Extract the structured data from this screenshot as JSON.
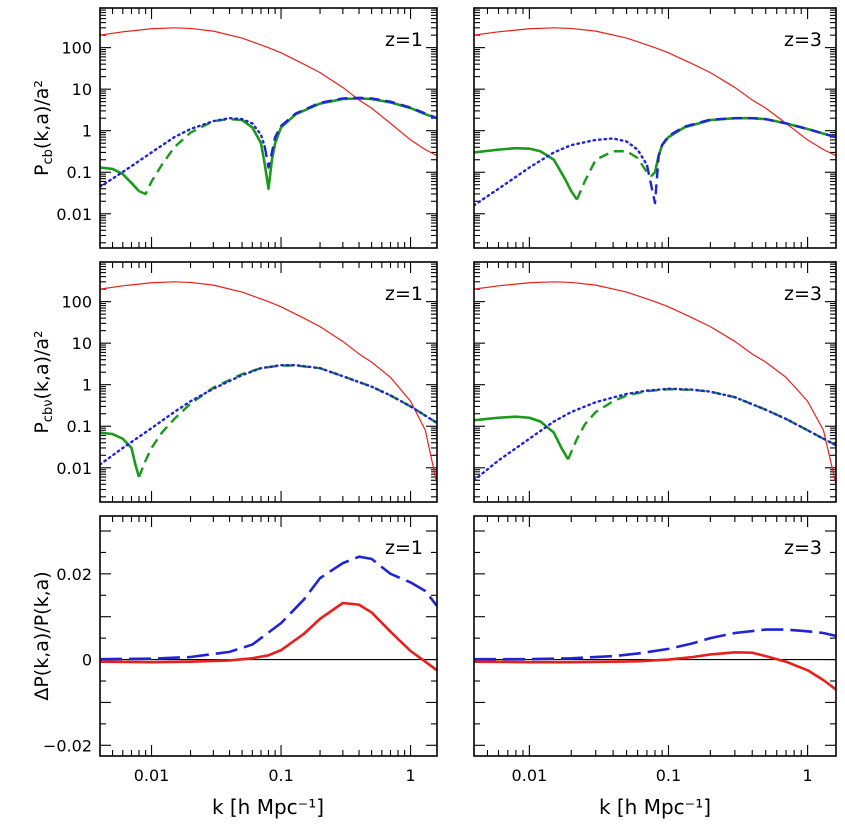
{
  "colors": {
    "red": "#e8201c",
    "green": "#1a9a1a",
    "blue": "#1f25d6",
    "axis": "#000000"
  },
  "figure": {
    "rows": [
      {
        "ylabel": "P",
        "ylabel_sub": "cb",
        "ylabel_rest": "(k,a)/a²"
      },
      {
        "ylabel": "P",
        "ylabel_sub": "cbν",
        "ylabel_rest": "(k,a)/a²"
      },
      {
        "ylabel": "ΔP(k,a)/P(k,a)",
        "ylabel_sub": "",
        "ylabel_rest": ""
      }
    ],
    "xlabel": "k  [h Mpc⁻¹]",
    "x_tick_labels": [
      "0.01",
      "0.1",
      "1"
    ],
    "log_y_tick_labels": [
      "0.01",
      "0.1",
      "1",
      "10",
      "100"
    ],
    "lin_y_tick_labels": [
      "−0.02",
      "0",
      "0.02"
    ],
    "panel_labels": [
      "z=1",
      "z=3",
      "z=1",
      "z=3",
      "z=1",
      "z=3"
    ]
  },
  "chart_data": [
    {
      "type": "line",
      "panel": "top-left",
      "label": "z=1",
      "xscale": "log",
      "yscale": "log",
      "xlim": [
        0.004,
        1.6
      ],
      "ylim": [
        0.0015,
        900
      ],
      "series": [
        {
          "color": "red",
          "style": "solid-thin",
          "x": [
            0.004,
            0.006,
            0.01,
            0.015,
            0.02,
            0.03,
            0.05,
            0.08,
            0.1,
            0.15,
            0.2,
            0.3,
            0.4,
            0.5,
            0.7,
            1.0,
            1.3,
            1.6
          ],
          "y": [
            200,
            240,
            285,
            300,
            290,
            250,
            170,
            100,
            75,
            40,
            25,
            11,
            5.5,
            3.5,
            1.5,
            0.6,
            0.35,
            0.25
          ]
        },
        {
          "color": "green",
          "style": "solid-thick",
          "x": [
            0.004,
            0.005,
            0.006,
            0.007,
            0.008
          ],
          "y": [
            0.13,
            0.12,
            0.09,
            0.055,
            0.035
          ]
        },
        {
          "color": "green",
          "style": "dashed",
          "x": [
            0.008,
            0.009,
            0.01,
            0.012,
            0.015,
            0.02,
            0.03,
            0.04,
            0.05
          ],
          "y": [
            0.035,
            0.03,
            0.06,
            0.15,
            0.4,
            0.9,
            1.7,
            1.9,
            1.8
          ]
        },
        {
          "color": "green",
          "style": "solid-thick",
          "x": [
            0.05,
            0.06,
            0.07,
            0.075,
            0.08,
            0.085,
            0.09,
            0.1,
            0.13,
            0.2,
            0.3,
            0.4,
            0.5,
            0.7,
            1.0,
            1.3,
            1.6
          ],
          "y": [
            1.8,
            1.2,
            0.5,
            0.15,
            0.04,
            0.2,
            0.5,
            1.2,
            2.5,
            4.5,
            5.8,
            6.0,
            5.8,
            4.8,
            3.5,
            2.5,
            2.0
          ]
        },
        {
          "color": "blue",
          "style": "dotted",
          "x": [
            0.004,
            0.005,
            0.007,
            0.01,
            0.015,
            0.02,
            0.03,
            0.04,
            0.05,
            0.06,
            0.07,
            0.075
          ],
          "y": [
            0.045,
            0.07,
            0.14,
            0.3,
            0.7,
            1.1,
            1.7,
            2.0,
            1.9,
            1.5,
            0.8,
            0.4
          ]
        },
        {
          "color": "blue",
          "style": "dashed",
          "x": [
            0.075,
            0.08,
            0.085,
            0.09,
            0.1,
            0.13,
            0.2,
            0.3,
            0.4,
            0.5,
            0.7,
            1.0,
            1.3,
            1.6
          ],
          "y": [
            0.4,
            0.13,
            0.3,
            0.7,
            1.3,
            2.6,
            4.7,
            6.0,
            6.2,
            6.0,
            5.0,
            3.6,
            2.6,
            2.0
          ]
        }
      ]
    },
    {
      "type": "line",
      "panel": "top-right",
      "label": "z=3",
      "xscale": "log",
      "yscale": "log",
      "xlim": [
        0.004,
        1.6
      ],
      "ylim": [
        0.0015,
        900
      ],
      "series": [
        {
          "color": "red",
          "style": "solid-thin",
          "x": [
            0.004,
            0.006,
            0.01,
            0.015,
            0.02,
            0.03,
            0.05,
            0.08,
            0.1,
            0.15,
            0.2,
            0.3,
            0.4,
            0.5,
            0.7,
            1.0,
            1.3,
            1.6
          ],
          "y": [
            200,
            240,
            285,
            300,
            290,
            250,
            170,
            100,
            75,
            40,
            25,
            11,
            5.5,
            3.5,
            1.5,
            0.6,
            0.35,
            0.25
          ]
        },
        {
          "color": "green",
          "style": "solid-thick",
          "x": [
            0.004,
            0.006,
            0.008,
            0.01,
            0.012,
            0.015,
            0.018,
            0.02,
            0.022
          ],
          "y": [
            0.3,
            0.35,
            0.38,
            0.37,
            0.32,
            0.2,
            0.07,
            0.035,
            0.022
          ]
        },
        {
          "color": "green",
          "style": "dashed",
          "x": [
            0.022,
            0.025,
            0.03,
            0.04,
            0.05,
            0.06,
            0.07,
            0.075
          ],
          "y": [
            0.022,
            0.06,
            0.2,
            0.32,
            0.32,
            0.22,
            0.1,
            0.08
          ]
        },
        {
          "color": "green",
          "style": "solid-thick",
          "x": [
            0.075,
            0.08,
            0.085,
            0.09,
            0.1,
            0.13,
            0.2,
            0.3,
            0.4,
            0.5,
            0.7,
            1.0,
            1.3,
            1.6
          ],
          "y": [
            0.08,
            0.1,
            0.25,
            0.45,
            0.7,
            1.2,
            1.8,
            2.0,
            2.0,
            1.9,
            1.5,
            1.1,
            0.85,
            0.7
          ]
        },
        {
          "color": "blue",
          "style": "dotted",
          "x": [
            0.004,
            0.006,
            0.01,
            0.015,
            0.02,
            0.03,
            0.04,
            0.05,
            0.06,
            0.07
          ],
          "y": [
            0.016,
            0.04,
            0.13,
            0.3,
            0.45,
            0.6,
            0.65,
            0.55,
            0.35,
            0.15
          ]
        },
        {
          "color": "blue",
          "style": "dashed",
          "x": [
            0.07,
            0.075,
            0.08,
            0.085,
            0.09,
            0.1,
            0.13,
            0.2,
            0.3,
            0.4,
            0.5,
            0.7,
            1.0,
            1.3,
            1.6
          ],
          "y": [
            0.15,
            0.05,
            0.018,
            0.25,
            0.45,
            0.75,
            1.25,
            1.85,
            2.0,
            2.0,
            1.9,
            1.5,
            1.1,
            0.85,
            0.7
          ]
        }
      ]
    },
    {
      "type": "line",
      "panel": "middle-left",
      "label": "z=1",
      "xscale": "log",
      "yscale": "log",
      "xlim": [
        0.004,
        1.6
      ],
      "ylim": [
        0.0015,
        900
      ],
      "series": [
        {
          "color": "red",
          "style": "solid-thin",
          "x": [
            0.004,
            0.006,
            0.01,
            0.015,
            0.02,
            0.03,
            0.05,
            0.08,
            0.1,
            0.15,
            0.2,
            0.3,
            0.4,
            0.5,
            0.7,
            1.0,
            1.3,
            1.6
          ],
          "y": [
            200,
            240,
            285,
            300,
            290,
            250,
            170,
            100,
            75,
            40,
            25,
            11,
            5.5,
            3.5,
            1.5,
            0.4,
            0.08,
            0.004
          ]
        },
        {
          "color": "green",
          "style": "solid-thick",
          "x": [
            0.004,
            0.005,
            0.006,
            0.007,
            0.0075,
            0.008
          ],
          "y": [
            0.07,
            0.065,
            0.05,
            0.03,
            0.012,
            0.006
          ]
        },
        {
          "color": "green",
          "style": "dashed",
          "x": [
            0.008,
            0.009,
            0.01,
            0.012,
            0.015,
            0.02,
            0.03,
            0.05,
            0.07,
            0.1,
            0.13,
            0.2,
            0.3,
            0.5,
            0.7,
            1.0,
            1.3,
            1.6
          ],
          "y": [
            0.006,
            0.015,
            0.03,
            0.07,
            0.15,
            0.35,
            0.85,
            1.8,
            2.5,
            2.9,
            2.9,
            2.5,
            1.6,
            0.9,
            0.55,
            0.3,
            0.18,
            0.12
          ]
        },
        {
          "color": "blue",
          "style": "dotted",
          "x": [
            0.004,
            0.006,
            0.01,
            0.015,
            0.02,
            0.03,
            0.05,
            0.07,
            0.1,
            0.13,
            0.2,
            0.3,
            0.5,
            0.7,
            1.0,
            1.3,
            1.6
          ],
          "y": [
            0.012,
            0.03,
            0.09,
            0.22,
            0.4,
            0.8,
            1.7,
            2.5,
            2.95,
            2.95,
            2.5,
            1.6,
            0.9,
            0.55,
            0.3,
            0.18,
            0.12
          ]
        }
      ]
    },
    {
      "type": "line",
      "panel": "middle-right",
      "label": "z=3",
      "xscale": "log",
      "yscale": "log",
      "xlim": [
        0.004,
        1.6
      ],
      "ylim": [
        0.0015,
        900
      ],
      "series": [
        {
          "color": "red",
          "style": "solid-thin",
          "x": [
            0.004,
            0.006,
            0.01,
            0.015,
            0.02,
            0.03,
            0.05,
            0.08,
            0.1,
            0.15,
            0.2,
            0.3,
            0.4,
            0.5,
            0.7,
            1.0,
            1.3,
            1.6
          ],
          "y": [
            200,
            240,
            285,
            300,
            290,
            250,
            170,
            100,
            75,
            40,
            25,
            11,
            5.5,
            3.5,
            1.5,
            0.4,
            0.08,
            0.004
          ]
        },
        {
          "color": "green",
          "style": "solid-thick",
          "x": [
            0.004,
            0.006,
            0.008,
            0.01,
            0.012,
            0.015,
            0.017,
            0.019
          ],
          "y": [
            0.14,
            0.16,
            0.17,
            0.16,
            0.13,
            0.07,
            0.03,
            0.016
          ]
        },
        {
          "color": "green",
          "style": "dashed",
          "x": [
            0.019,
            0.022,
            0.025,
            0.03,
            0.04,
            0.05,
            0.07,
            0.1,
            0.15,
            0.2,
            0.3,
            0.5,
            0.7,
            1.0,
            1.3,
            1.6
          ],
          "y": [
            0.016,
            0.05,
            0.11,
            0.22,
            0.4,
            0.55,
            0.7,
            0.78,
            0.75,
            0.68,
            0.5,
            0.25,
            0.15,
            0.08,
            0.05,
            0.035
          ]
        },
        {
          "color": "blue",
          "style": "dotted",
          "x": [
            0.004,
            0.006,
            0.01,
            0.015,
            0.02,
            0.03,
            0.05,
            0.07,
            0.1,
            0.15,
            0.2,
            0.3,
            0.5,
            0.7,
            1.0,
            1.3,
            1.6
          ],
          "y": [
            0.005,
            0.015,
            0.05,
            0.13,
            0.22,
            0.38,
            0.6,
            0.72,
            0.8,
            0.76,
            0.68,
            0.5,
            0.25,
            0.15,
            0.08,
            0.05,
            0.035
          ]
        }
      ]
    },
    {
      "type": "line",
      "panel": "bottom-left",
      "label": "z=1",
      "xscale": "log",
      "yscale": "linear",
      "xlim": [
        0.004,
        1.6
      ],
      "ylim": [
        -0.0225,
        0.0335
      ],
      "series": [
        {
          "color": "blue",
          "style": "dashed-long",
          "x": [
            0.004,
            0.01,
            0.02,
            0.04,
            0.06,
            0.1,
            0.15,
            0.2,
            0.3,
            0.4,
            0.5,
            0.7,
            1.0,
            1.3,
            1.6
          ],
          "y": [
            0.0001,
            0.0002,
            0.0006,
            0.0018,
            0.0035,
            0.0085,
            0.014,
            0.019,
            0.0225,
            0.024,
            0.0235,
            0.02,
            0.018,
            0.016,
            0.0125
          ]
        },
        {
          "color": "red",
          "style": "solid-medium",
          "x": [
            0.004,
            0.01,
            0.02,
            0.04,
            0.06,
            0.08,
            0.1,
            0.15,
            0.2,
            0.3,
            0.4,
            0.5,
            0.7,
            1.0,
            1.3,
            1.6
          ],
          "y": [
            -0.0005,
            -0.0006,
            -0.0005,
            -0.0002,
            0.0003,
            0.001,
            0.0022,
            0.006,
            0.0095,
            0.0132,
            0.0128,
            0.011,
            0.0065,
            0.002,
            -0.0005,
            -0.0025
          ]
        }
      ]
    },
    {
      "type": "line",
      "panel": "bottom-right",
      "label": "z=3",
      "xscale": "log",
      "yscale": "linear",
      "xlim": [
        0.004,
        1.6
      ],
      "ylim": [
        -0.0225,
        0.0335
      ],
      "series": [
        {
          "color": "blue",
          "style": "dashed-long",
          "x": [
            0.004,
            0.01,
            0.02,
            0.04,
            0.06,
            0.1,
            0.15,
            0.2,
            0.3,
            0.5,
            0.7,
            1.0,
            1.3,
            1.6
          ],
          "y": [
            0.0001,
            0.0001,
            0.0003,
            0.0008,
            0.0014,
            0.0025,
            0.0038,
            0.005,
            0.0062,
            0.007,
            0.007,
            0.0066,
            0.0062,
            0.0055
          ]
        },
        {
          "color": "red",
          "style": "solid-medium",
          "x": [
            0.004,
            0.01,
            0.02,
            0.04,
            0.06,
            0.1,
            0.15,
            0.2,
            0.3,
            0.4,
            0.5,
            0.7,
            1.0,
            1.3,
            1.6
          ],
          "y": [
            -0.0005,
            -0.0006,
            -0.0006,
            -0.0005,
            -0.0004,
            0.0,
            0.0006,
            0.0012,
            0.0017,
            0.0016,
            0.0008,
            -0.0005,
            -0.0025,
            -0.0048,
            -0.007
          ]
        }
      ]
    }
  ]
}
